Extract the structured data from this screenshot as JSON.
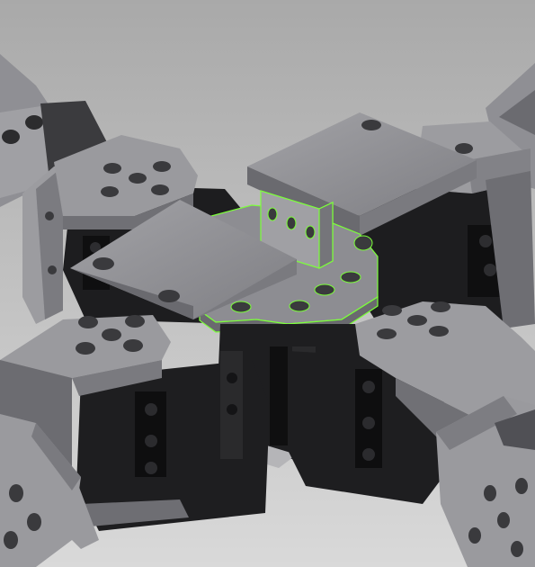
{
  "viewport": {
    "kind": "cad-3d-render",
    "subject": "robot-servo-bracket-assembly",
    "selected_part": "center-mounting-plate"
  },
  "colors": {
    "background_top": "#a9a9a9",
    "background_bottom": "#d9d9d9",
    "part_light": "#9a9a9e",
    "part_mid": "#7d7d82",
    "part_dark": "#5c5c61",
    "servo_body": "#232325",
    "servo_shadow": "#131314",
    "hole": "#3a3a3d",
    "highlight": "#7cff3a"
  }
}
